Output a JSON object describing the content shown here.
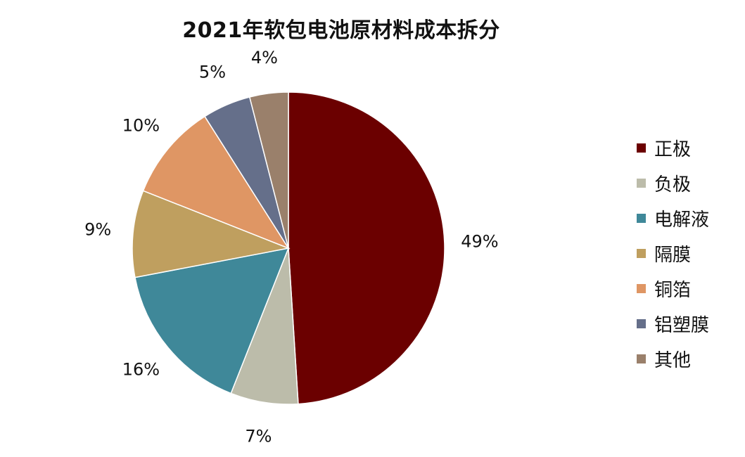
{
  "chart_data": {
    "type": "pie",
    "title": "2021年软包电池原材料成本拆分",
    "legend_position": "right",
    "categories": [
      "正极",
      "负极",
      "电解液",
      "隔膜",
      "铜箔",
      "铝塑膜",
      "其他"
    ],
    "values": [
      49,
      7,
      16,
      9,
      10,
      5,
      4
    ],
    "labels": [
      "49%",
      "7%",
      "16%",
      "9%",
      "10%",
      "5%",
      "4%"
    ],
    "colors": [
      "#6b0000",
      "#bcbcaa",
      "#3f8899",
      "#bf9f5f",
      "#df9664",
      "#656f8a",
      "#9a806b"
    ]
  }
}
